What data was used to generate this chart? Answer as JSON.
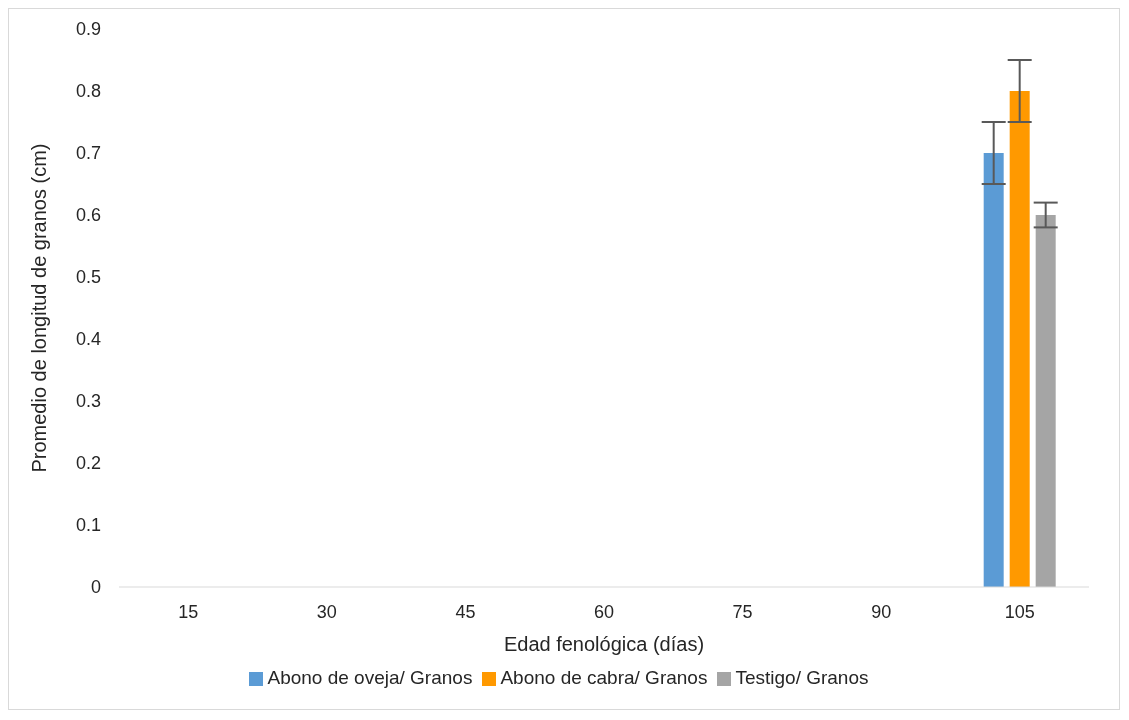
{
  "chart_data": {
    "type": "bar",
    "xlabel": "Edad fenológica (días)",
    "ylabel": "Promedio de longitud de granos (cm)",
    "categories": [
      "15",
      "30",
      "45",
      "60",
      "75",
      "90",
      "105"
    ],
    "series": [
      {
        "name": "Abono de oveja/ Granos",
        "color": "#5b9bd5",
        "values": [
          0,
          0,
          0,
          0,
          0,
          0,
          0.7
        ],
        "errors": [
          0,
          0,
          0,
          0,
          0,
          0,
          0.05
        ]
      },
      {
        "name": "Abono de cabra/ Granos",
        "color": "#ff9900",
        "values": [
          0,
          0,
          0,
          0,
          0,
          0,
          0.8
        ],
        "errors": [
          0,
          0,
          0,
          0,
          0,
          0,
          0.05
        ]
      },
      {
        "name": "Testigo/ Granos",
        "color": "#a5a5a5",
        "values": [
          0,
          0,
          0,
          0,
          0,
          0,
          0.6
        ],
        "errors": [
          0,
          0,
          0,
          0,
          0,
          0,
          0.02
        ]
      }
    ],
    "ylim": [
      0,
      0.9
    ],
    "yticks": [
      0,
      0.1,
      0.2,
      0.3,
      0.4,
      0.5,
      0.6,
      0.7,
      0.8,
      0.9
    ],
    "grid": false,
    "legend": "bottom"
  }
}
